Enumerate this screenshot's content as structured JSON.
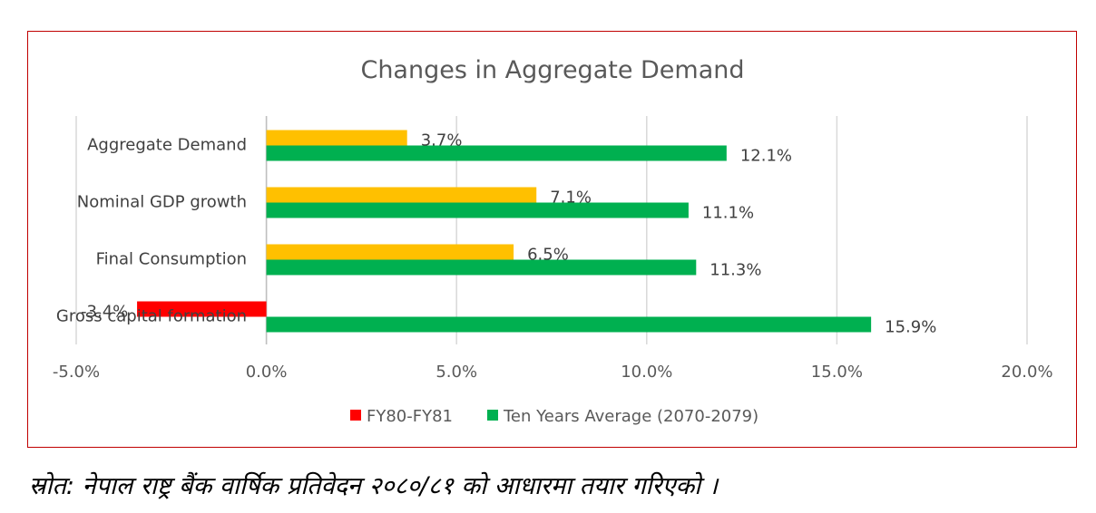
{
  "chart_data": {
    "type": "bar",
    "orientation": "horizontal",
    "title": "Changes in Aggregate Demand",
    "categories": [
      "Aggregate Demand",
      "Nominal GDP growth",
      "Final Consumption",
      "Gross capital formation"
    ],
    "series": [
      {
        "name": "FY80-FY81",
        "values": [
          3.7,
          7.1,
          6.5,
          -3.4
        ],
        "data_labels": [
          "3.7%",
          "7.1%",
          "6.5%",
          "-3.4%"
        ],
        "color": "#ffc000",
        "negative_color": "#ff0000",
        "legend_color": "#ff0000"
      },
      {
        "name": "Ten Years Average (2070-2079)",
        "values": [
          12.1,
          11.1,
          11.3,
          15.9
        ],
        "data_labels": [
          "12.1%",
          "11.1%",
          "11.3%",
          "15.9%"
        ],
        "color": "#00b050",
        "legend_color": "#00b050"
      }
    ],
    "xlim": [
      -5,
      20
    ],
    "x_ticks": [
      -5,
      0,
      5,
      10,
      15,
      20
    ],
    "x_tick_labels": [
      "-5.0%",
      "0.0%",
      "5.0%",
      "10.0%",
      "15.0%",
      "20.0%"
    ],
    "grid": true,
    "legend_position": "bottom"
  },
  "source_note": "स्रोत: नेपाल राष्ट्र बैंक वार्षिक प्रतिवेदन २०८०/८१ को आधारमा तयार गरिएको ।",
  "colors": {
    "frame_border": "#c00000",
    "gridline": "#d9d9d9"
  }
}
